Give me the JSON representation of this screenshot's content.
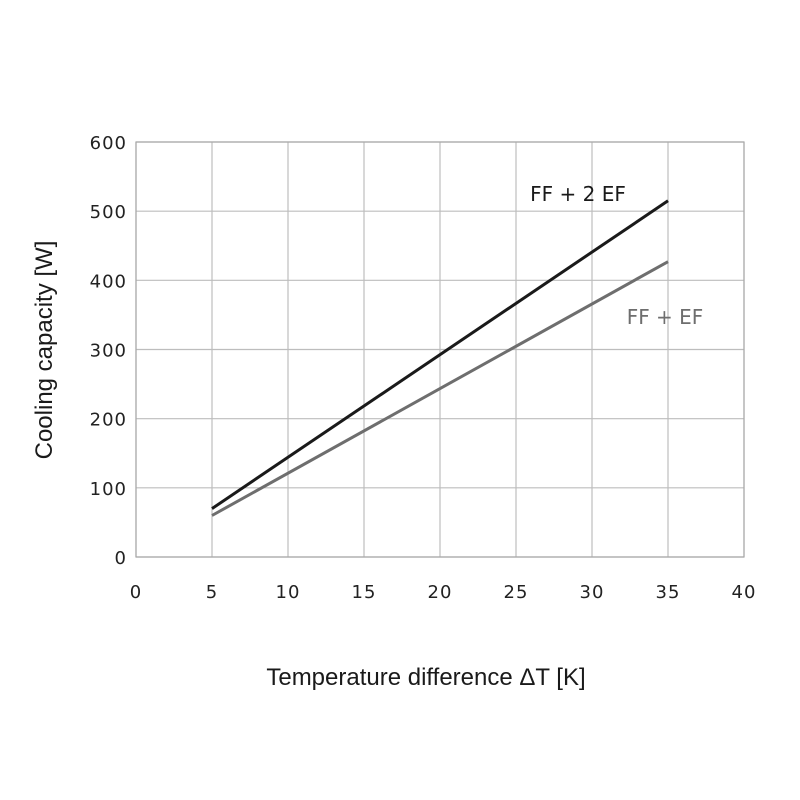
{
  "chart_data": {
    "type": "line",
    "xlabel": "Temperature difference  ΔT [K]",
    "ylabel": "Cooling capacity  [W]",
    "xlim": [
      0,
      40
    ],
    "ylim": [
      0,
      600
    ],
    "xticks": [
      0,
      5,
      10,
      15,
      20,
      25,
      30,
      35,
      40
    ],
    "yticks": [
      0,
      100,
      200,
      300,
      400,
      500,
      600
    ],
    "grid": true,
    "series": [
      {
        "name": "FF + 2 EF",
        "color": "#1a1a1a",
        "x": [
          5,
          35
        ],
        "y": [
          70,
          515
        ]
      },
      {
        "name": "FF + EF",
        "color": "#6e6e6e",
        "x": [
          5,
          35
        ],
        "y": [
          60,
          427
        ]
      }
    ]
  }
}
